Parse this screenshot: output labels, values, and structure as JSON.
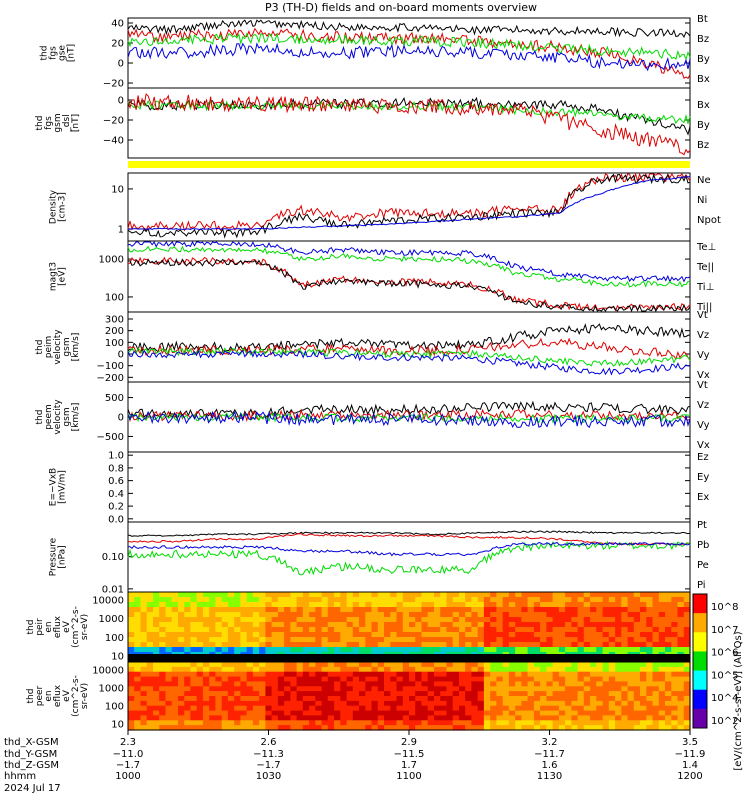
{
  "title": "P3 (TH-D) fields and on-board moments overview",
  "colors": {
    "black": "#000000",
    "red": "#dd0000",
    "green": "#00dd00",
    "blue": "#0000dd",
    "yellow": "#ffff00"
  },
  "chart_data": [
    {
      "type": "line",
      "panel": "fgs_mag",
      "ylabel": [
        "thd",
        "fgs",
        "gse",
        "[nT]"
      ],
      "ylim": [
        -25,
        45
      ],
      "ticks": [
        "40",
        "20",
        "0",
        "−20"
      ],
      "legend": [
        "Bt",
        "Bz",
        "By",
        "Bx"
      ],
      "series": [
        {
          "name": "Bt",
          "color": "black",
          "base": [
            35,
            33,
            38,
            40,
            38,
            36,
            36,
            35,
            33,
            33,
            32,
            32,
            30,
            30
          ],
          "noise": 4
        },
        {
          "name": "Bz",
          "color": "red",
          "base": [
            28,
            27,
            28,
            30,
            27,
            25,
            25,
            24,
            22,
            20,
            15,
            10,
            0,
            -15
          ],
          "noise": 6
        },
        {
          "name": "By",
          "color": "green",
          "base": [
            22,
            22,
            24,
            25,
            24,
            23,
            22,
            22,
            20,
            18,
            14,
            12,
            10,
            8
          ],
          "noise": 5
        },
        {
          "name": "Bx",
          "color": "blue",
          "base": [
            10,
            10,
            12,
            15,
            10,
            10,
            12,
            12,
            10,
            8,
            5,
            0,
            -2,
            0
          ],
          "noise": 6
        }
      ]
    },
    {
      "type": "line",
      "panel": "fgs_gsm",
      "ylabel": [
        "thd",
        "fgs",
        "gsm",
        "_dsl",
        "[nT]"
      ],
      "ylim": [
        -58,
        12
      ],
      "ticks": [
        "0",
        "−20",
        "−40"
      ],
      "legend": [
        "Bx",
        "By",
        "Bz"
      ],
      "series": [
        {
          "name": "Bx",
          "color": "black",
          "base": [
            -5,
            -5,
            -5,
            -5,
            -4,
            -4,
            -3,
            -3,
            -3,
            -3,
            -5,
            -10,
            -20,
            -30
          ],
          "noise": 5
        },
        {
          "name": "By",
          "color": "green",
          "base": [
            -5,
            -5,
            -6,
            -6,
            -6,
            -6,
            -6,
            -6,
            -8,
            -10,
            -12,
            -15,
            -18,
            -20
          ],
          "noise": 4
        },
        {
          "name": "Bz",
          "color": "red",
          "base": [
            -2,
            -2,
            -3,
            -3,
            -5,
            -5,
            -6,
            -6,
            -8,
            -10,
            -20,
            -30,
            -40,
            -50
          ],
          "noise": 8
        }
      ]
    },
    {
      "type": "line",
      "panel": "density",
      "ylabel": [
        "Density",
        "[cm-3]"
      ],
      "ylim": [
        0.5,
        25
      ],
      "log": true,
      "ticks": [
        "10",
        "1"
      ],
      "legend": [
        "Ne",
        "Ni",
        "Npot"
      ],
      "series": [
        {
          "name": "Ne",
          "color": "red",
          "base": [
            1.2,
            1.2,
            1.2,
            1.2,
            3,
            2,
            2.5,
            2.5,
            2.5,
            3,
            3,
            20,
            20,
            20
          ],
          "noise": 0.4
        },
        {
          "name": "Ni",
          "color": "black",
          "base": [
            0.8,
            0.8,
            0.8,
            0.8,
            2,
            1.2,
            1.6,
            1.8,
            2,
            2.5,
            2.5,
            18,
            18,
            18
          ],
          "noise": 0.35
        },
        {
          "name": "Npot",
          "color": "blue",
          "base": [
            1,
            1,
            1,
            1,
            1.1,
            1.2,
            1.3,
            1.5,
            1.8,
            2,
            2.5,
            8,
            16,
            20
          ],
          "noise": 0.05
        }
      ]
    },
    {
      "type": "line",
      "panel": "temperature",
      "ylabel": [
        "magt3",
        "[eV]"
      ],
      "ylim": [
        40,
        3000
      ],
      "log": true,
      "ticks": [
        "1000",
        "100"
      ],
      "legend": [
        "Te⊥",
        "Te||",
        "Ti⊥",
        "Ti||"
      ],
      "series": [
        {
          "name": "Te⊥",
          "color": "red",
          "base": [
            900,
            900,
            900,
            900,
            200,
            300,
            250,
            250,
            200,
            80,
            60,
            50,
            55,
            55
          ],
          "noise": 0.3
        },
        {
          "name": "Te||",
          "color": "black",
          "base": [
            800,
            800,
            800,
            800,
            180,
            280,
            220,
            220,
            180,
            70,
            55,
            45,
            50,
            50
          ],
          "noise": 0.3
        },
        {
          "name": "Ti⊥",
          "color": "blue",
          "base": [
            2500,
            2500,
            2500,
            2500,
            1500,
            1800,
            1500,
            1500,
            1400,
            600,
            400,
            300,
            300,
            300
          ],
          "noise": 0.25
        },
        {
          "name": "Ti||",
          "color": "green",
          "base": [
            1800,
            1800,
            1800,
            1800,
            1000,
            1200,
            1000,
            1000,
            900,
            400,
            300,
            220,
            220,
            220
          ],
          "noise": 0.25
        }
      ]
    },
    {
      "type": "line",
      "panel": "peim_velocity",
      "ylabel": [
        "thd",
        "peim",
        "velocity",
        "gsm",
        "[km/s]"
      ],
      "ylim": [
        -240,
        360
      ],
      "ticks": [
        "300",
        "200",
        "100",
        "0",
        "−100",
        "−200"
      ],
      "legend": [
        "Vt",
        "Vz",
        "Vy",
        "Vx"
      ],
      "series": [
        {
          "name": "Vt",
          "color": "black",
          "base": [
            60,
            60,
            70,
            60,
            80,
            100,
            80,
            70,
            80,
            150,
            200,
            220,
            200,
            180
          ],
          "noise": 40
        },
        {
          "name": "Vz",
          "color": "red",
          "base": [
            30,
            30,
            30,
            30,
            40,
            40,
            30,
            30,
            40,
            80,
            100,
            60,
            20,
            -20
          ],
          "noise": 40
        },
        {
          "name": "Vy",
          "color": "green",
          "base": [
            20,
            20,
            20,
            20,
            20,
            10,
            0,
            0,
            0,
            -30,
            -60,
            -80,
            -60,
            -40
          ],
          "noise": 30
        },
        {
          "name": "Vx",
          "color": "blue",
          "base": [
            0,
            0,
            0,
            0,
            0,
            -20,
            -30,
            -30,
            -40,
            -80,
            -120,
            -150,
            -130,
            -100
          ],
          "noise": 30
        }
      ]
    },
    {
      "type": "line",
      "panel": "peem_velocity",
      "ylabel": [
        "thd",
        "peem",
        "velocity",
        "gsm",
        "[km/s]"
      ],
      "ylim": [
        -900,
        900
      ],
      "ticks": [
        "500",
        "0",
        "−500"
      ],
      "legend": [
        "Vt",
        "Vz",
        "Vy",
        "Vx"
      ],
      "series": [
        {
          "name": "Vt",
          "color": "black",
          "base": [
            80,
            80,
            80,
            80,
            200,
            200,
            180,
            200,
            250,
            300,
            250,
            250,
            200,
            180
          ],
          "noise": 120
        },
        {
          "name": "Vz",
          "color": "red",
          "base": [
            20,
            20,
            20,
            20,
            50,
            60,
            50,
            50,
            60,
            80,
            50,
            50,
            30,
            20
          ],
          "noise": 120
        },
        {
          "name": "Vy",
          "color": "green",
          "base": [
            0,
            0,
            0,
            0,
            -20,
            -20,
            -20,
            -20,
            -20,
            -40,
            -40,
            -40,
            -30,
            -20
          ],
          "noise": 100
        },
        {
          "name": "Vx",
          "color": "blue",
          "base": [
            -20,
            -20,
            -20,
            -20,
            -60,
            -60,
            -60,
            -60,
            -80,
            -120,
            -120,
            -120,
            -100,
            -80
          ],
          "noise": 150
        }
      ]
    },
    {
      "type": "line",
      "panel": "e_field",
      "ylabel": [
        "E=−VxB",
        "[mV/m]"
      ],
      "ylim": [
        -0.05,
        1.05
      ],
      "ticks": [
        "1.0",
        "0.8",
        "0.6",
        "0.4",
        "0.2",
        "0.0"
      ],
      "legend": [
        "Ez",
        "Ey",
        "Ex"
      ],
      "series": []
    },
    {
      "type": "line",
      "panel": "pressure",
      "ylabel": [
        "Pressure",
        "[nPa]"
      ],
      "ylim": [
        0.008,
        1.2
      ],
      "log": true,
      "ticks": [
        "0.10",
        "0.01"
      ],
      "legend": [
        "Pt",
        "Pb",
        "Pe",
        "Pi"
      ],
      "series": [
        {
          "name": "Pt",
          "color": "black",
          "base": [
            0.45,
            0.45,
            0.5,
            0.5,
            0.55,
            0.55,
            0.55,
            0.5,
            0.55,
            0.6,
            0.6,
            0.55,
            0.55,
            0.55
          ],
          "noise": 0.08
        },
        {
          "name": "Pb",
          "color": "red",
          "base": [
            0.3,
            0.3,
            0.35,
            0.35,
            0.5,
            0.45,
            0.45,
            0.45,
            0.4,
            0.4,
            0.35,
            0.25,
            0.25,
            0.25
          ],
          "noise": 0.1
        },
        {
          "name": "Pe",
          "color": "green",
          "base": [
            0.12,
            0.12,
            0.12,
            0.12,
            0.03,
            0.05,
            0.04,
            0.04,
            0.04,
            0.2,
            0.22,
            0.22,
            0.22,
            0.22
          ],
          "noise": 0.4
        },
        {
          "name": "Pi",
          "color": "blue",
          "base": [
            0.2,
            0.2,
            0.2,
            0.2,
            0.15,
            0.15,
            0.12,
            0.12,
            0.12,
            0.25,
            0.25,
            0.25,
            0.25,
            0.25
          ],
          "noise": 0.15
        }
      ]
    },
    {
      "type": "heatmap",
      "panel": "peir_spectrogram",
      "ylabel": [
        "thd",
        "peir",
        "en",
        "eflux",
        "eV",
        "(cm^2-s-",
        "sr-eV)"
      ],
      "ytick_labels": [
        "10000",
        "1000",
        "100",
        "10"
      ]
    },
    {
      "type": "heatmap",
      "panel": "peer_spectrogram",
      "ylabel": [
        "thd",
        "peer",
        "en",
        "eflux",
        "eV",
        "(cm^2-s-",
        "sr-eV)"
      ],
      "ytick_labels": [
        "10000",
        "1000",
        "100",
        "10"
      ]
    }
  ],
  "colorbar": {
    "label": "[eV/(cm^2-s-sr-eV)] (All Qs)",
    "ticks": [
      "10^8",
      "10^7",
      "10^6",
      "10^5",
      "10^4",
      "10^2"
    ],
    "colors": [
      "#ff0000",
      "#ffaa00",
      "#ffff00",
      "#00dd00",
      "#00ffff",
      "#0000ff",
      "#6600aa"
    ]
  },
  "time_axis": {
    "rows": [
      {
        "label": "thd_X-GSM",
        "values": [
          "2.3",
          "2.6",
          "2.9",
          "3.2",
          "3.5"
        ]
      },
      {
        "label": "thd_Y-GSM",
        "values": [
          "−11.0",
          "−11.3",
          "−11.5",
          "−11.7",
          "−11.9"
        ]
      },
      {
        "label": "thd_Z-GSM",
        "values": [
          "−1.7",
          "−1.7",
          "1.7",
          "1.6",
          "1.4"
        ]
      },
      {
        "label": "hhmm",
        "values": [
          "1000",
          "1030",
          "1100",
          "1130",
          "1200"
        ]
      }
    ],
    "date": "2024 Jul 17"
  }
}
